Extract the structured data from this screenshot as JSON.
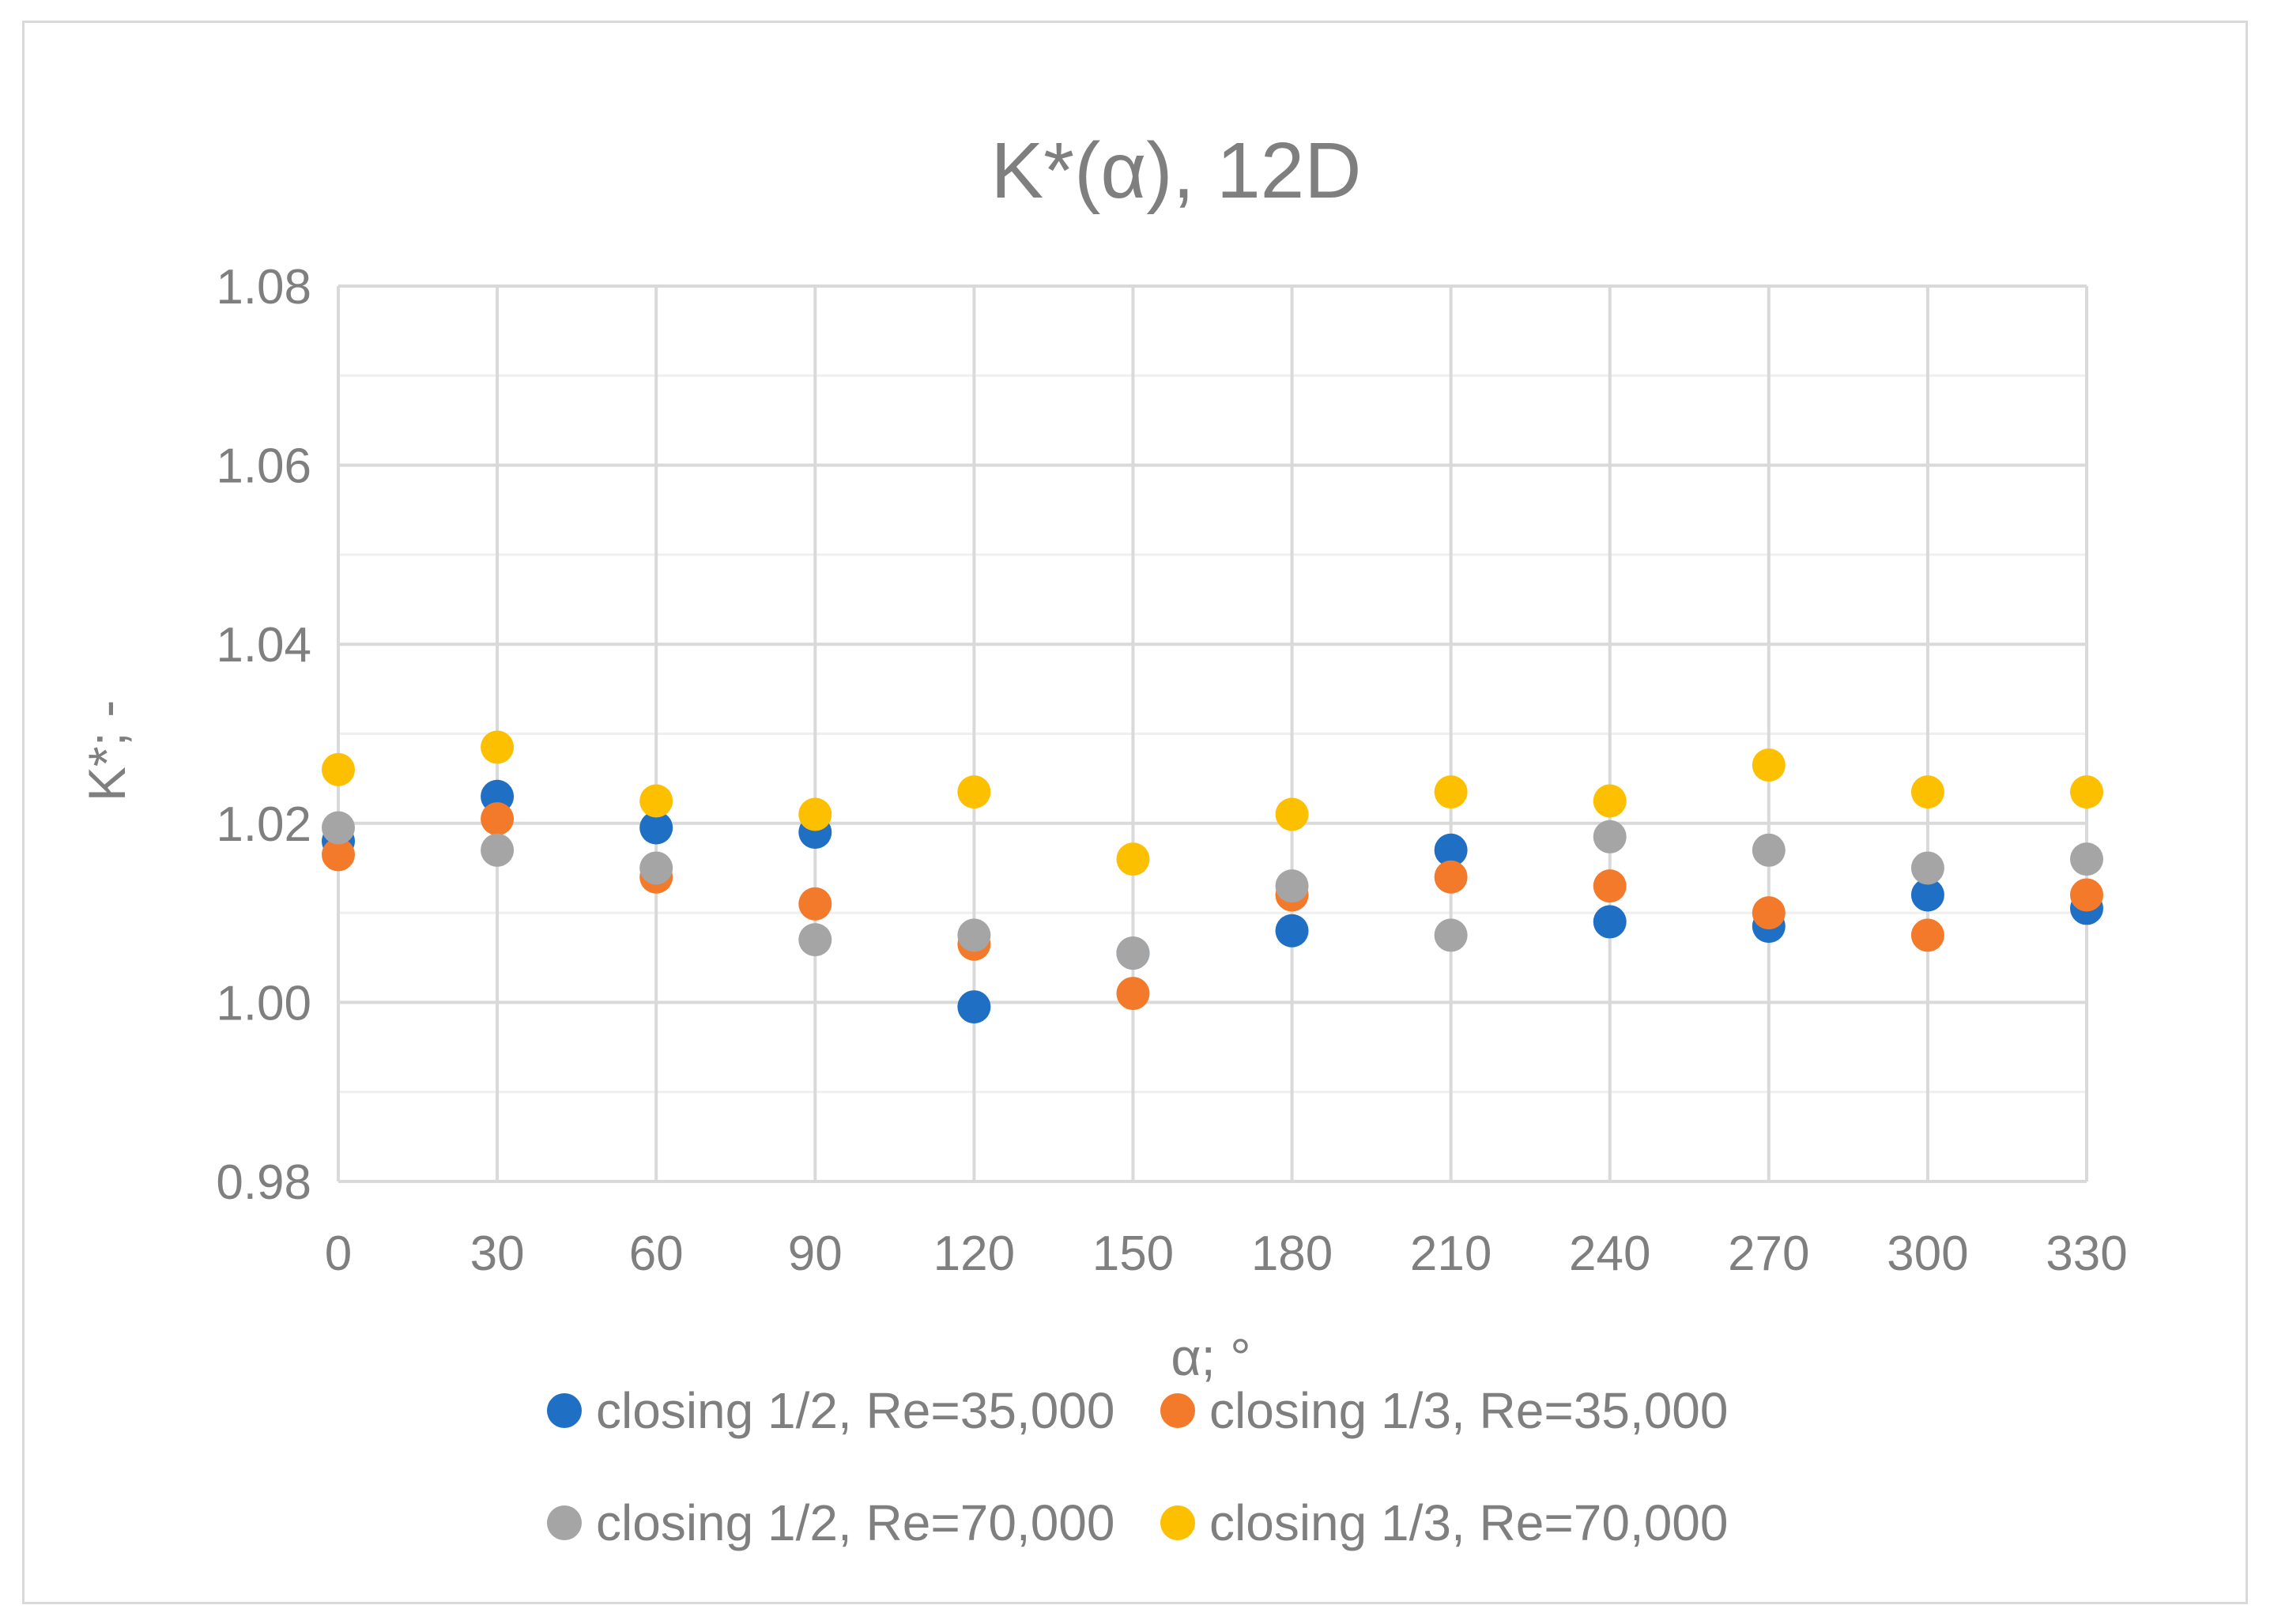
{
  "chart_data": {
    "type": "scatter",
    "title": "K*(α), 12D",
    "xlabel": "α; °",
    "ylabel": "K*; -",
    "x": [
      0,
      30,
      60,
      90,
      120,
      150,
      180,
      210,
      240,
      270,
      300,
      330
    ],
    "x_ticks": [
      "0",
      "30",
      "60",
      "90",
      "120",
      "150",
      "180",
      "210",
      "240",
      "270",
      "300",
      "330"
    ],
    "xlim": [
      0,
      330
    ],
    "ylim": [
      0.98,
      1.08
    ],
    "y_ticks": [
      "0.98",
      "1.00",
      "1.02",
      "1.04",
      "1.06",
      "1.08"
    ],
    "y_tick_values": [
      0.98,
      1.0,
      1.02,
      1.04,
      1.06,
      1.08
    ],
    "grid": true,
    "legend_position": "bottom",
    "series": [
      {
        "name": "closing 1/2, Re=35,000",
        "color": "#1f6fc4",
        "values": [
          1.018,
          1.023,
          1.0195,
          1.019,
          0.9995,
          1.0055,
          1.008,
          1.017,
          1.009,
          1.0085,
          1.012,
          1.0105
        ]
      },
      {
        "name": "closing 1/3, Re=35,000",
        "color": "#f37a2a",
        "values": [
          1.0165,
          1.0205,
          1.014,
          1.011,
          1.0065,
          1.001,
          1.012,
          1.014,
          1.013,
          1.01,
          1.0075,
          1.012
        ]
      },
      {
        "name": "closing 1/2, Re=70,000",
        "color": "#a5a5a5",
        "values": [
          1.0195,
          1.017,
          1.015,
          1.007,
          1.0075,
          1.0055,
          1.013,
          1.0075,
          1.0185,
          1.017,
          1.015,
          1.016
        ]
      },
      {
        "name": "closing 1/3, Re=70,000",
        "color": "#fcc000",
        "values": [
          1.026,
          1.0285,
          1.0225,
          1.021,
          1.0235,
          1.016,
          1.021,
          1.0235,
          1.0225,
          1.0265,
          1.0235,
          1.0235
        ]
      }
    ]
  },
  "styling": {
    "grid_color": "#d9d9d9",
    "minor_grid_color": "#efefef",
    "text_color": "#7f7f7f"
  }
}
